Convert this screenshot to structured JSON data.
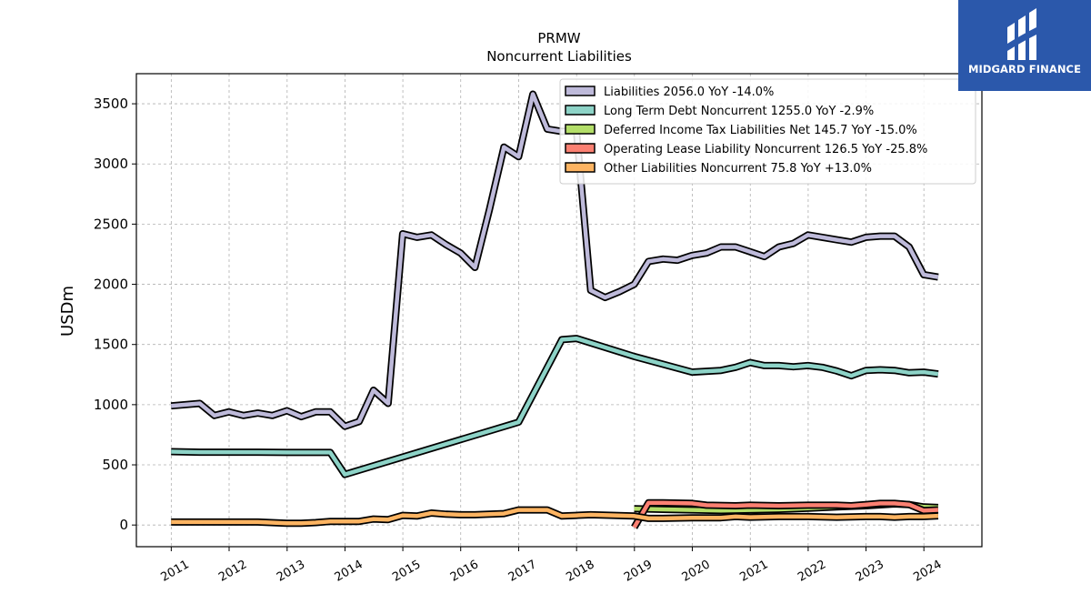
{
  "chart_data": {
    "type": "line",
    "title": "PRMW",
    "subtitle": "Noncurrent  Liabilities",
    "ylabel": "USDm",
    "xlabel": "",
    "ylim": [
      -180,
      3750
    ],
    "xlim": [
      "2010-05-26",
      "2025-01-01"
    ],
    "yticks": [
      0,
      500,
      1000,
      1500,
      2000,
      2500,
      3000,
      3500
    ],
    "xticks": [
      "2011",
      "2012",
      "2013",
      "2014",
      "2015",
      "2016",
      "2017",
      "2018",
      "2019",
      "2020",
      "2021",
      "2022",
      "2023",
      "2024"
    ],
    "grid": true,
    "legend_position": "top-right",
    "series": [
      {
        "name": "Liabilities  2056.0 YoY -14.0%",
        "color": "#bebada",
        "points": [
          [
            "2010-12-31",
            990
          ],
          [
            "2011-06-30",
            1010
          ],
          [
            "2011-09-30",
            910
          ],
          [
            "2011-12-31",
            940
          ],
          [
            "2012-03-31",
            910
          ],
          [
            "2012-06-30",
            930
          ],
          [
            "2012-09-30",
            910
          ],
          [
            "2012-12-31",
            950
          ],
          [
            "2013-03-31",
            900
          ],
          [
            "2013-06-30",
            940
          ],
          [
            "2013-09-30",
            940
          ],
          [
            "2013-12-31",
            820
          ],
          [
            "2014-03-31",
            860
          ],
          [
            "2014-06-30",
            1120
          ],
          [
            "2014-09-30",
            1010
          ],
          [
            "2014-12-31",
            2420
          ],
          [
            "2015-03-31",
            2390
          ],
          [
            "2015-06-30",
            2410
          ],
          [
            "2015-09-30",
            2330
          ],
          [
            "2015-12-31",
            2260
          ],
          [
            "2016-03-31",
            2140
          ],
          [
            "2016-06-30",
            2620
          ],
          [
            "2016-09-30",
            3140
          ],
          [
            "2016-12-31",
            3060
          ],
          [
            "2017-03-31",
            3580
          ],
          [
            "2017-06-30",
            3290
          ],
          [
            "2017-09-30",
            3270
          ],
          [
            "2017-12-31",
            3280
          ],
          [
            "2018-03-31",
            1950
          ],
          [
            "2018-06-30",
            1890
          ],
          [
            "2018-09-30",
            1940
          ],
          [
            "2018-12-31",
            2000
          ],
          [
            "2019-03-31",
            2190
          ],
          [
            "2019-06-30",
            2210
          ],
          [
            "2019-09-30",
            2200
          ],
          [
            "2019-12-31",
            2240
          ],
          [
            "2020-03-31",
            2260
          ],
          [
            "2020-06-30",
            2310
          ],
          [
            "2020-09-30",
            2310
          ],
          [
            "2020-12-31",
            2270
          ],
          [
            "2021-03-31",
            2230
          ],
          [
            "2021-06-30",
            2310
          ],
          [
            "2021-09-30",
            2340
          ],
          [
            "2021-12-31",
            2410
          ],
          [
            "2022-03-31",
            2390
          ],
          [
            "2022-06-30",
            2370
          ],
          [
            "2022-09-30",
            2350
          ],
          [
            "2022-12-31",
            2390
          ],
          [
            "2023-03-31",
            2400
          ],
          [
            "2023-06-30",
            2400
          ],
          [
            "2023-09-30",
            2310
          ],
          [
            "2023-12-31",
            2080
          ],
          [
            "2024-03-31",
            2060
          ]
        ]
      },
      {
        "name": "Long Term Debt Noncurrent  1255.0 YoY -2.9%",
        "color": "#8dd3c7",
        "points": [
          [
            "2010-12-31",
            610
          ],
          [
            "2011-06-30",
            605
          ],
          [
            "2011-12-31",
            605
          ],
          [
            "2012-06-30",
            605
          ],
          [
            "2012-12-31",
            603
          ],
          [
            "2013-06-30",
            603
          ],
          [
            "2013-09-30",
            603
          ],
          [
            "2013-12-31",
            420
          ],
          [
            "2016-12-31",
            855
          ],
          [
            "2017-09-30",
            1540
          ],
          [
            "2017-12-31",
            1550
          ],
          [
            "2018-12-31",
            1400
          ],
          [
            "2019-12-31",
            1270
          ],
          [
            "2020-06-30",
            1285
          ],
          [
            "2020-09-30",
            1310
          ],
          [
            "2020-12-31",
            1350
          ],
          [
            "2021-03-31",
            1325
          ],
          [
            "2021-06-30",
            1325
          ],
          [
            "2021-09-30",
            1315
          ],
          [
            "2021-12-31",
            1325
          ],
          [
            "2022-03-31",
            1310
          ],
          [
            "2022-06-30",
            1280
          ],
          [
            "2022-09-30",
            1240
          ],
          [
            "2022-12-31",
            1285
          ],
          [
            "2023-03-31",
            1290
          ],
          [
            "2023-06-30",
            1285
          ],
          [
            "2023-09-30",
            1265
          ],
          [
            "2023-12-31",
            1270
          ],
          [
            "2024-03-31",
            1255
          ]
        ]
      },
      {
        "name": "Deferred Income Tax Liabilities Net  145.7 YoY -15.0%",
        "color": "#b3de69",
        "points": [
          [
            "2018-12-31",
            135
          ],
          [
            "2019-06-30",
            130
          ],
          [
            "2019-12-31",
            125
          ],
          [
            "2020-06-30",
            120
          ],
          [
            "2020-12-31",
            125
          ],
          [
            "2021-06-30",
            130
          ],
          [
            "2021-12-31",
            140
          ],
          [
            "2022-06-30",
            150
          ],
          [
            "2022-12-31",
            160
          ],
          [
            "2023-06-30",
            175
          ],
          [
            "2023-09-30",
            170
          ],
          [
            "2023-12-31",
            150
          ],
          [
            "2024-03-31",
            146
          ]
        ]
      },
      {
        "name": "Operating Lease Liability Noncurrent  126.5 YoY -25.8%",
        "color": "#fb8072",
        "points": [
          [
            "2018-12-31",
            -20
          ],
          [
            "2019-03-31",
            185
          ],
          [
            "2019-06-30",
            185
          ],
          [
            "2019-12-31",
            180
          ],
          [
            "2020-03-31",
            165
          ],
          [
            "2020-09-30",
            160
          ],
          [
            "2020-12-31",
            165
          ],
          [
            "2021-06-30",
            160
          ],
          [
            "2021-12-31",
            165
          ],
          [
            "2022-06-30",
            165
          ],
          [
            "2022-09-30",
            160
          ],
          [
            "2022-12-31",
            170
          ],
          [
            "2023-03-31",
            180
          ],
          [
            "2023-06-30",
            180
          ],
          [
            "2023-09-30",
            170
          ],
          [
            "2023-12-31",
            120
          ],
          [
            "2024-03-31",
            126
          ]
        ]
      },
      {
        "name": "Other Liabilities Noncurrent  75.8 YoY +13.0%",
        "color": "#fdb462",
        "points": [
          [
            "2010-12-31",
            25
          ],
          [
            "2011-12-31",
            25
          ],
          [
            "2012-06-30",
            25
          ],
          [
            "2012-12-31",
            15
          ],
          [
            "2013-03-31",
            15
          ],
          [
            "2013-06-30",
            20
          ],
          [
            "2013-09-30",
            30
          ],
          [
            "2014-03-31",
            30
          ],
          [
            "2014-06-30",
            50
          ],
          [
            "2014-09-30",
            45
          ],
          [
            "2014-12-31",
            80
          ],
          [
            "2015-03-31",
            75
          ],
          [
            "2015-06-30",
            100
          ],
          [
            "2015-09-30",
            90
          ],
          [
            "2015-12-31",
            85
          ],
          [
            "2016-03-31",
            85
          ],
          [
            "2016-06-30",
            90
          ],
          [
            "2016-09-30",
            95
          ],
          [
            "2016-12-31",
            125
          ],
          [
            "2017-06-30",
            125
          ],
          [
            "2017-09-30",
            75
          ],
          [
            "2017-12-31",
            80
          ],
          [
            "2018-03-31",
            85
          ],
          [
            "2018-12-31",
            75
          ],
          [
            "2019-03-31",
            55
          ],
          [
            "2019-06-30",
            55
          ],
          [
            "2019-12-31",
            60
          ],
          [
            "2020-06-30",
            60
          ],
          [
            "2020-09-30",
            70
          ],
          [
            "2020-12-31",
            65
          ],
          [
            "2021-06-30",
            70
          ],
          [
            "2021-12-31",
            70
          ],
          [
            "2022-06-30",
            65
          ],
          [
            "2022-12-31",
            70
          ],
          [
            "2023-03-31",
            70
          ],
          [
            "2023-06-30",
            65
          ],
          [
            "2023-09-30",
            70
          ],
          [
            "2023-12-31",
            70
          ],
          [
            "2024-03-31",
            76
          ]
        ]
      }
    ]
  },
  "branding": {
    "logo_text": "MIDGARD FINANCE",
    "logo_icon": "midgard-finance-logo-icon",
    "logo_color": "#2b58ab"
  }
}
